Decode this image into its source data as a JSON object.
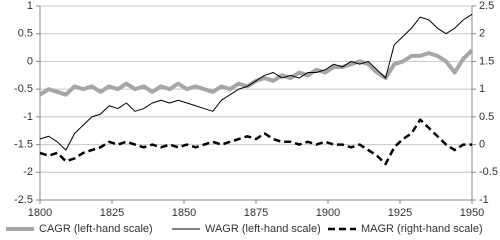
{
  "chart_data": {
    "type": "line",
    "x": [
      1800,
      1803,
      1806,
      1809,
      1812,
      1815,
      1818,
      1821,
      1824,
      1827,
      1830,
      1833,
      1836,
      1839,
      1842,
      1845,
      1848,
      1851,
      1854,
      1857,
      1860,
      1863,
      1866,
      1869,
      1872,
      1875,
      1878,
      1881,
      1884,
      1887,
      1890,
      1893,
      1896,
      1899,
      1902,
      1905,
      1908,
      1911,
      1914,
      1917,
      1920,
      1923,
      1926,
      1929,
      1932,
      1935,
      1938,
      1941,
      1944,
      1947,
      1950
    ],
    "series": [
      {
        "name": "CAGR (left-hand scale)",
        "color": "#a6a6a6",
        "values": [
          -0.6,
          -0.5,
          -0.55,
          -0.6,
          -0.45,
          -0.5,
          -0.45,
          -0.55,
          -0.45,
          -0.5,
          -0.4,
          -0.5,
          -0.45,
          -0.55,
          -0.45,
          -0.5,
          -0.4,
          -0.5,
          -0.45,
          -0.5,
          -0.55,
          -0.45,
          -0.5,
          -0.4,
          -0.45,
          -0.35,
          -0.3,
          -0.35,
          -0.25,
          -0.3,
          -0.2,
          -0.25,
          -0.15,
          -0.2,
          -0.1,
          -0.1,
          -0.05,
          0,
          -0.05,
          -0.2,
          -0.3,
          -0.05,
          0,
          0.1,
          0.1,
          0.15,
          0.1,
          0.0,
          -0.2,
          0.05,
          0.2
        ]
      },
      {
        "name": "WAGR (left-hand scale)",
        "color": "#000000",
        "values": [
          -1.4,
          -1.35,
          -1.45,
          -1.6,
          -1.3,
          -1.15,
          -1.0,
          -0.95,
          -0.8,
          -0.85,
          -0.75,
          -0.9,
          -0.85,
          -0.75,
          -0.7,
          -0.75,
          -0.7,
          -0.75,
          -0.8,
          -0.85,
          -0.9,
          -0.7,
          -0.6,
          -0.5,
          -0.45,
          -0.35,
          -0.25,
          -0.2,
          -0.3,
          -0.25,
          -0.3,
          -0.2,
          -0.2,
          -0.15,
          -0.05,
          -0.1,
          0,
          -0.05,
          0,
          -0.15,
          -0.3,
          0.3,
          0.45,
          0.6,
          0.8,
          0.75,
          0.6,
          0.5,
          0.6,
          0.75,
          0.85
        ]
      },
      {
        "name": "MAGR (right-hand scale)",
        "color": "#000000",
        "axis": "y2",
        "dashed": true,
        "values": [
          -0.15,
          -0.2,
          -0.15,
          -0.3,
          -0.25,
          -0.15,
          -0.1,
          -0.05,
          0.05,
          0,
          0.05,
          0,
          -0.05,
          0,
          -0.05,
          0,
          -0.05,
          0,
          -0.05,
          0,
          0.05,
          0,
          0.05,
          0.1,
          0.15,
          0.1,
          0.2,
          0.1,
          0.05,
          0.05,
          0,
          0.05,
          0,
          0.05,
          0,
          0,
          -0.05,
          0,
          -0.1,
          -0.2,
          -0.35,
          -0.05,
          0.1,
          0.2,
          0.45,
          0.3,
          0.15,
          0.0,
          -0.1,
          0.0,
          0.0
        ]
      }
    ],
    "xlim": [
      1800,
      1950
    ],
    "xticks": [
      1800,
      1825,
      1850,
      1875,
      1900,
      1925,
      1950
    ],
    "ylim": [
      -2.5,
      1
    ],
    "yticks": [
      -2.5,
      -2,
      -1.5,
      -1,
      -0.5,
      0,
      0.5,
      1
    ],
    "y2lim": [
      -1,
      2.5
    ],
    "y2ticks": [
      -1,
      -0.5,
      0,
      0.5,
      1,
      1.5,
      2,
      2.5
    ],
    "grid": true,
    "legend": "bottom"
  }
}
